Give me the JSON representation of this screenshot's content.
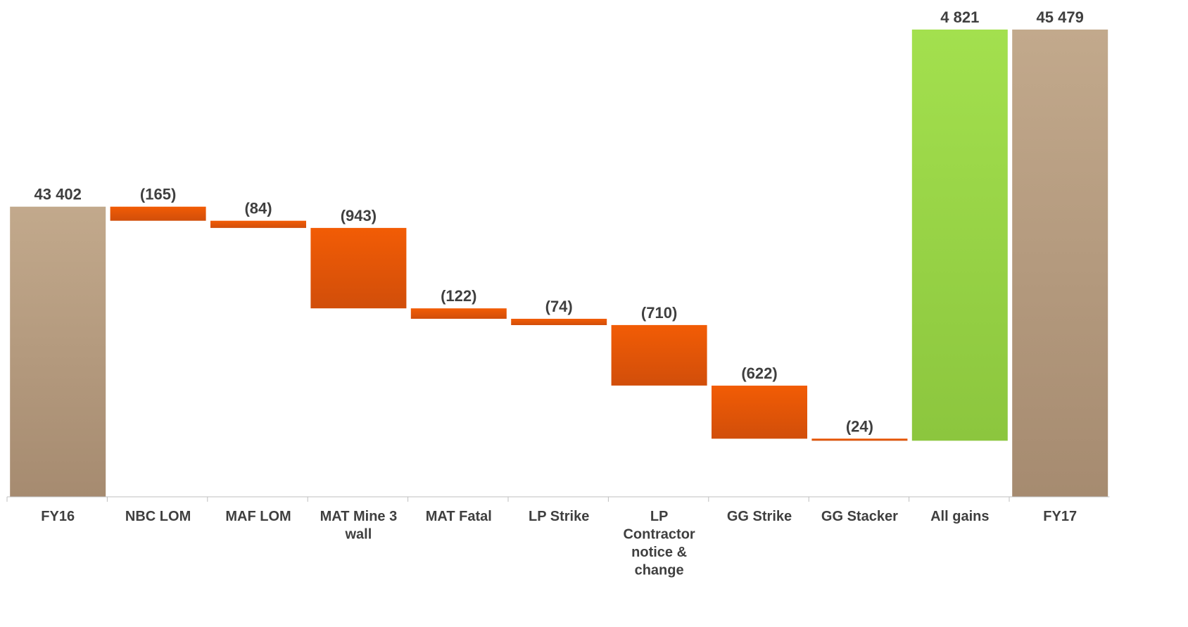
{
  "chart_data": {
    "type": "bar",
    "subtype": "waterfall",
    "title": "",
    "xlabel": "",
    "ylabel": "",
    "categories": [
      "FY16",
      "NBC LOM",
      "MAF LOM",
      "MAT Mine 3 wall",
      "MAT Fatal",
      "LP Strike",
      "LP Contractor notice & change",
      "GG Strike",
      "GG Stacker",
      "All gains",
      "FY17"
    ],
    "category_lines": [
      [
        "FY16"
      ],
      [
        "NBC LOM"
      ],
      [
        "MAF LOM"
      ],
      [
        "MAT Mine 3",
        "wall"
      ],
      [
        "MAT Fatal"
      ],
      [
        "LP Strike"
      ],
      [
        "LP",
        "Contractor",
        "notice &",
        "change"
      ],
      [
        "GG Strike"
      ],
      [
        "GG Stacker"
      ],
      [
        "All gains"
      ],
      [
        "FY17"
      ]
    ],
    "values": [
      43402,
      -165,
      -84,
      -943,
      -122,
      -74,
      -710,
      -622,
      -24,
      4821,
      45479
    ],
    "kinds": [
      "total",
      "delta",
      "delta",
      "delta",
      "delta",
      "delta",
      "delta",
      "delta",
      "delta",
      "delta",
      "total"
    ],
    "data_labels": [
      "43 402",
      "(165)",
      "(84)",
      "(943)",
      "(122)",
      "(74)",
      "(710)",
      "(622)",
      "(24)",
      "4 821",
      "45 479"
    ],
    "ylim": [
      40000,
      45500
    ],
    "grid": false,
    "legend": "none",
    "colors": {
      "total_top": "#c2a98c",
      "total_bottom": "#a68b70",
      "negative_top": "#f25c05",
      "negative_bottom": "#d14e0a",
      "positive_top": "#a3e04e",
      "positive_bottom": "#8cc63e",
      "label": "#3f3f3f",
      "axis": "#bfbfbf"
    }
  }
}
